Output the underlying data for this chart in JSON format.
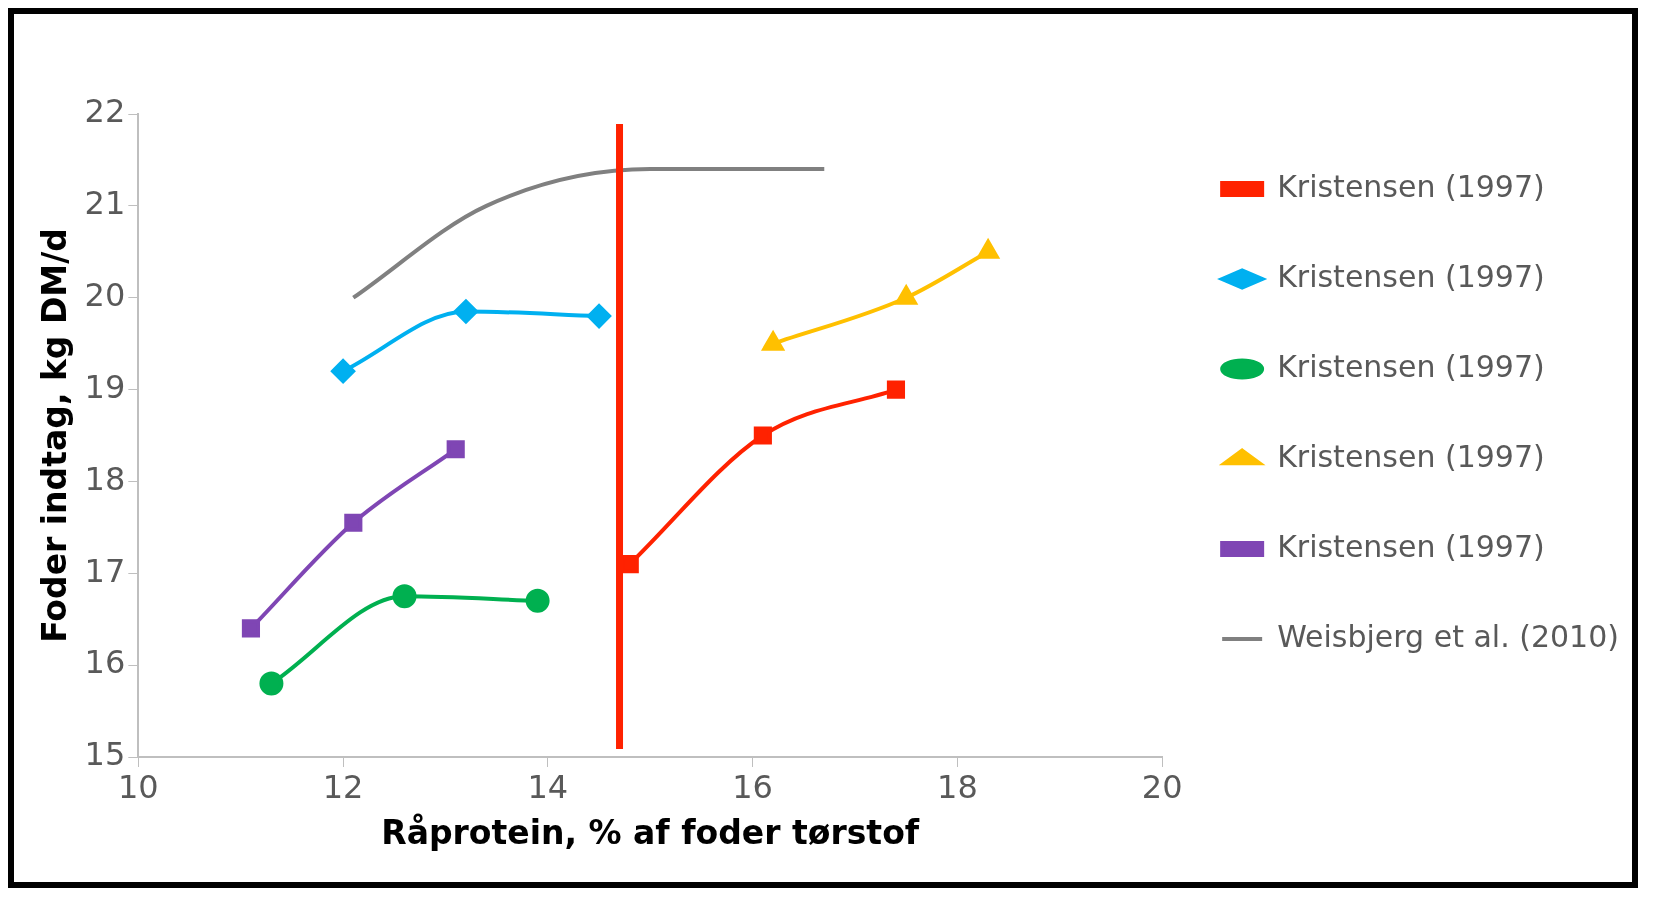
{
  "chart_data": {
    "type": "line",
    "xlabel": "Råprotein, % af foder tørstof",
    "ylabel": "Foder indtag, kg DM/d",
    "xlim": [
      10,
      20
    ],
    "xticks": [
      10,
      12,
      14,
      16,
      18,
      20
    ],
    "ylim": [
      15,
      22
    ],
    "yticks": [
      15,
      16,
      17,
      18,
      19,
      20,
      21,
      22
    ],
    "grid": false,
    "legend": "right",
    "series": [
      {
        "name": "Kristensen (1997)",
        "color": "#ff2200",
        "marker": "square",
        "x": [
          14.8,
          16.1,
          17.4
        ],
        "values": [
          17.1,
          18.5,
          19.0
        ]
      },
      {
        "name": "Kristensen (1997)",
        "color": "#00b0f0",
        "marker": "diamond",
        "x": [
          12.0,
          13.2,
          14.5
        ],
        "values": [
          19.2,
          19.85,
          19.8
        ]
      },
      {
        "name": "Kristensen (1997)",
        "color": "#00b050",
        "marker": "circle",
        "x": [
          11.3,
          12.6,
          13.9
        ],
        "values": [
          15.8,
          16.75,
          16.7
        ]
      },
      {
        "name": "Kristensen (1997)",
        "color": "#ffc000",
        "marker": "triangle",
        "x": [
          16.2,
          17.5,
          18.3
        ],
        "values": [
          19.5,
          20.0,
          20.5
        ]
      },
      {
        "name": "Kristensen (1997)",
        "color": "#7f46b4",
        "marker": "square",
        "x": [
          11.1,
          12.1,
          13.1
        ],
        "values": [
          16.4,
          17.55,
          18.35
        ]
      },
      {
        "name": "Weisbjerg et al. (2010)",
        "color": "#808080",
        "marker": "none",
        "x": [
          12.1,
          13.4,
          15.0,
          16.7
        ],
        "values": [
          20.0,
          21.0,
          21.4,
          21.4
        ]
      }
    ],
    "ref_lines": [
      {
        "axis": "x",
        "value": 14.7,
        "color": "#ff2200"
      }
    ]
  }
}
